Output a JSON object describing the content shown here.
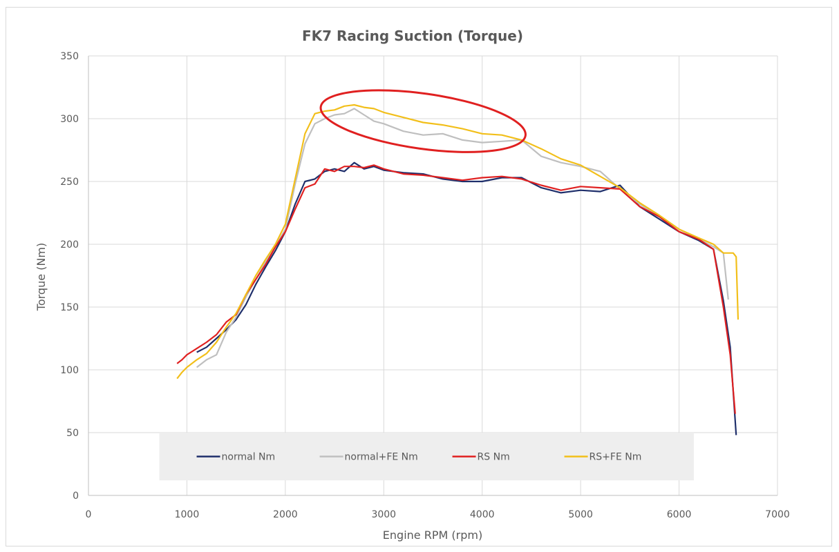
{
  "chart_data": {
    "type": "line",
    "title": "FK7 Racing Suction (Torque)",
    "xlabel": "Engine RPM (rpm)",
    "ylabel": "Torque (Nm)",
    "xlim": [
      0,
      7000
    ],
    "ylim": [
      0,
      350
    ],
    "xticks": [
      "0",
      "1000",
      "2000",
      "3000",
      "4000",
      "5000",
      "6000",
      "7000"
    ],
    "yticks": [
      "0",
      "50",
      "100",
      "150",
      "200",
      "250",
      "300",
      "350"
    ],
    "grid": true,
    "legend_placement": "bottom, inside plot",
    "highlight": {
      "shape": "ellipse",
      "color": "#e02020",
      "center": [
        3400,
        298
      ],
      "rx": 1050,
      "ry": 22
    },
    "series": [
      {
        "name": "normal Nm",
        "color": "#1f2f6b",
        "x": [
          1100,
          1200,
          1300,
          1400,
          1500,
          1600,
          1700,
          1800,
          1900,
          2000,
          2100,
          2200,
          2300,
          2400,
          2500,
          2600,
          2700,
          2800,
          2900,
          3000,
          3200,
          3400,
          3600,
          3800,
          4000,
          4200,
          4400,
          4600,
          4800,
          5000,
          5200,
          5400,
          5600,
          5800,
          6000,
          6200,
          6350,
          6450,
          6520,
          6580
        ],
        "y": [
          114,
          118,
          125,
          132,
          140,
          152,
          168,
          182,
          195,
          210,
          232,
          250,
          252,
          258,
          260,
          258,
          265,
          260,
          262,
          259,
          257,
          256,
          252,
          250,
          250,
          253,
          253,
          245,
          241,
          243,
          242,
          247,
          230,
          220,
          210,
          203,
          196,
          155,
          118,
          48
        ]
      },
      {
        "name": "normal+FE Nm",
        "color": "#bfbfbf",
        "x": [
          1100,
          1200,
          1300,
          1400,
          1500,
          1600,
          1700,
          1800,
          1900,
          2000,
          2100,
          2200,
          2300,
          2400,
          2500,
          2600,
          2700,
          2800,
          2900,
          3000,
          3200,
          3400,
          3600,
          3800,
          4000,
          4200,
          4400,
          4600,
          4800,
          5000,
          5200,
          5400,
          5600,
          5800,
          6000,
          6200,
          6350,
          6450,
          6500
        ],
        "y": [
          102,
          108,
          112,
          130,
          142,
          158,
          172,
          186,
          198,
          212,
          248,
          280,
          296,
          300,
          303,
          304,
          308,
          303,
          298,
          296,
          290,
          287,
          288,
          283,
          281,
          282,
          283,
          270,
          265,
          262,
          258,
          244,
          232,
          222,
          212,
          204,
          198,
          193,
          156
        ]
      },
      {
        "name": "RS Nm",
        "color": "#e02020",
        "x": [
          900,
          950,
          1000,
          1100,
          1200,
          1300,
          1400,
          1500,
          1600,
          1700,
          1800,
          1900,
          2000,
          2100,
          2200,
          2300,
          2400,
          2500,
          2600,
          2700,
          2800,
          2900,
          3000,
          3200,
          3400,
          3600,
          3800,
          4000,
          4200,
          4400,
          4600,
          4800,
          5000,
          5200,
          5400,
          5600,
          5800,
          6000,
          6200,
          6350,
          6450,
          6520,
          6570
        ],
        "y": [
          105,
          108,
          112,
          117,
          122,
          128,
          138,
          144,
          160,
          172,
          184,
          198,
          210,
          228,
          245,
          248,
          260,
          258,
          262,
          262,
          261,
          263,
          260,
          256,
          255,
          253,
          251,
          253,
          254,
          252,
          247,
          243,
          246,
          245,
          244,
          230,
          222,
          210,
          204,
          196,
          150,
          112,
          65
        ]
      },
      {
        "name": "RS+FE Nm",
        "color": "#f2bf1a",
        "x": [
          900,
          950,
          1000,
          1100,
          1200,
          1300,
          1400,
          1500,
          1600,
          1700,
          1800,
          1900,
          2000,
          2100,
          2200,
          2300,
          2400,
          2500,
          2600,
          2700,
          2800,
          2900,
          3000,
          3200,
          3400,
          3600,
          3800,
          4000,
          4200,
          4400,
          4600,
          4800,
          5000,
          5200,
          5400,
          5600,
          5800,
          6000,
          6200,
          6350,
          6450,
          6550,
          6580,
          6600
        ],
        "y": [
          93,
          98,
          102,
          108,
          113,
          122,
          134,
          145,
          160,
          175,
          188,
          200,
          216,
          252,
          288,
          304,
          306,
          307,
          310,
          311,
          309,
          308,
          305,
          301,
          297,
          295,
          292,
          288,
          287,
          283,
          276,
          268,
          263,
          254,
          245,
          233,
          223,
          212,
          205,
          200,
          193,
          193,
          190,
          140
        ]
      }
    ]
  }
}
